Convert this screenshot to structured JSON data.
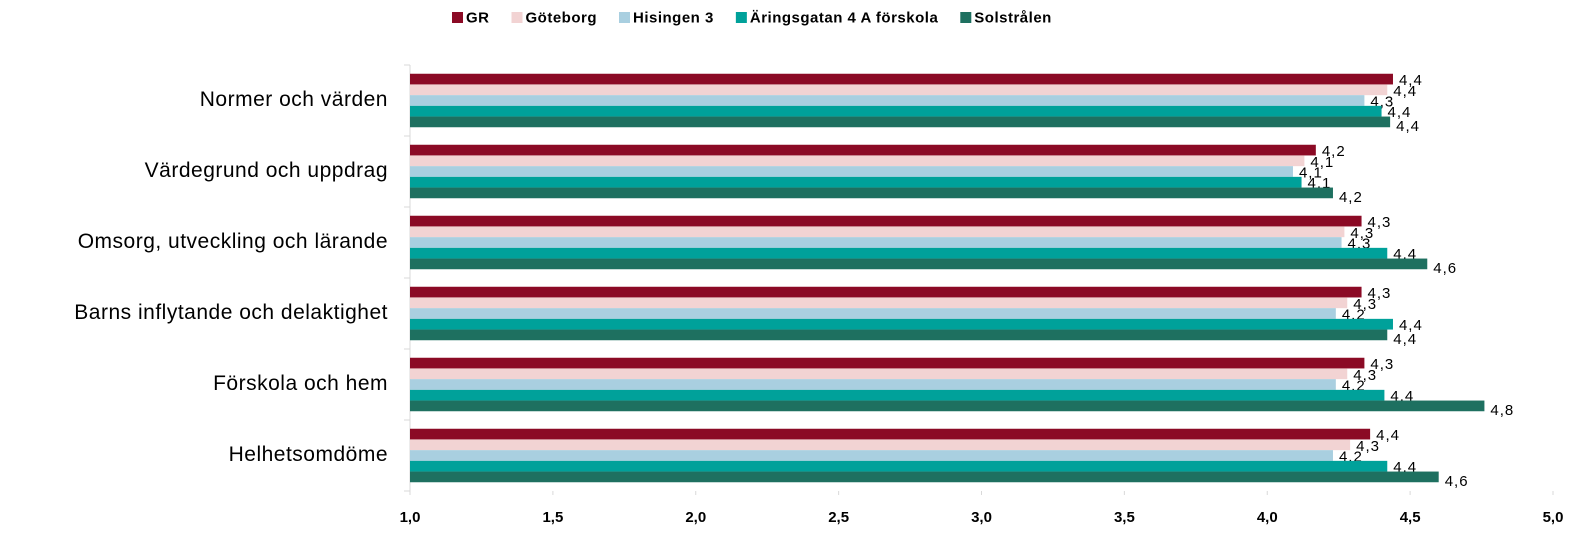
{
  "chart_data": {
    "type": "hbar",
    "categories": [
      "Normer och värden",
      "Värdegrund och uppdrag",
      "Omsorg, utveckling och lärande",
      "Barns inflytande och delaktighet",
      "Förskola och hem",
      "Helhetsomdöme"
    ],
    "series": [
      {
        "name": "GR",
        "color": "#8b0a25",
        "values": [
          4.44,
          4.17,
          4.33,
          4.33,
          4.34,
          4.36
        ],
        "value_labels": [
          "4,4",
          "4,2",
          "4,3",
          "4,3",
          "4,3",
          "4,4"
        ]
      },
      {
        "name": "Göteborg",
        "color": "#f2d3d3",
        "values": [
          4.42,
          4.13,
          4.27,
          4.28,
          4.28,
          4.29
        ],
        "value_labels": [
          "4,4",
          "4,1",
          "4,3",
          "4,3",
          "4,3",
          "4,3"
        ]
      },
      {
        "name": "Hisingen 3",
        "color": "#a9cfe0",
        "values": [
          4.34,
          4.09,
          4.26,
          4.24,
          4.24,
          4.23
        ],
        "value_labels": [
          "4,3",
          "4,1",
          "4,3",
          "4,2",
          "4,2",
          "4,2"
        ]
      },
      {
        "name": "Äringsgatan 4 A förskola",
        "color": "#00a19a",
        "values": [
          4.4,
          4.12,
          4.42,
          4.44,
          4.41,
          4.42
        ],
        "value_labels": [
          "4,4",
          "4,1",
          "4,4",
          "4,4",
          "4,4",
          "4,4"
        ]
      },
      {
        "name": "Solstrålen",
        "color": "#1e7060",
        "values": [
          4.43,
          4.23,
          4.56,
          4.42,
          4.76,
          4.6
        ],
        "value_labels": [
          "4,4",
          "4,2",
          "4,6",
          "4,4",
          "4,8",
          "4,6"
        ]
      }
    ],
    "xlim": [
      1.0,
      5.0
    ],
    "xticks": [
      {
        "value": 1.0,
        "label": "1,0"
      },
      {
        "value": 1.5,
        "label": "1,5"
      },
      {
        "value": 2.0,
        "label": "2,0"
      },
      {
        "value": 2.5,
        "label": "2,5"
      },
      {
        "value": 3.0,
        "label": "3,0"
      },
      {
        "value": 3.5,
        "label": "3,5"
      },
      {
        "value": 4.0,
        "label": "4,0"
      },
      {
        "value": 4.5,
        "label": "4,5"
      },
      {
        "value": 5.0,
        "label": "5,0"
      }
    ],
    "legend": "top"
  }
}
